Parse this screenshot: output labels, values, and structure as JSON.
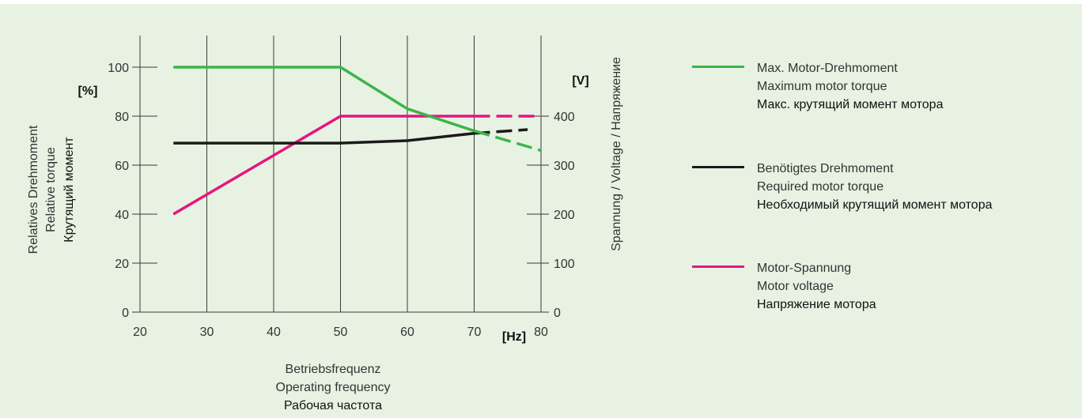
{
  "colors": {
    "background": "#e7f2e2",
    "max_torque": "#3cb54a",
    "required_torque": "#1a1a1a",
    "motor_voltage": "#e6157f"
  },
  "chart_data": {
    "type": "line",
    "xlabel": [
      "Betriebsfrequenz",
      "Operating frequency",
      "Рабочая частота"
    ],
    "x_unit": "[Hz]",
    "ylabel_left": [
      "Relatives Drehmoment",
      "Relative torque",
      "Крутящий момент"
    ],
    "y_unit_left": "[%]",
    "ylabel_right": "Spannung / Voltage / Напряжение",
    "y_unit_right": "[V]",
    "xlim": [
      20,
      80
    ],
    "ylim_left": [
      0,
      100
    ],
    "ylim_right": [
      0,
      500
    ],
    "x_ticks": [
      20,
      30,
      40,
      50,
      60,
      70,
      80
    ],
    "y_ticks_left": [
      0,
      20,
      40,
      60,
      80,
      100
    ],
    "y_ticks_right": [
      0,
      100,
      200,
      300,
      400
    ],
    "grid": "vertical lines at x ticks",
    "series": [
      {
        "name": [
          "Max. Motor-Drehmoment",
          "Maximum motor torque",
          "Макс. крутящий момент мотора"
        ],
        "color_key": "max_torque",
        "axis": "left",
        "x": [
          25,
          50,
          60,
          70
        ],
        "y": [
          100,
          100,
          83,
          74
        ],
        "dashed_x": [
          70,
          80
        ],
        "dashed_y": [
          74,
          66
        ]
      },
      {
        "name": [
          "Benötigtes Drehmoment",
          "Required motor torque",
          "Необходимый крутящий момент мотора"
        ],
        "color_key": "required_torque",
        "axis": "left",
        "x": [
          25,
          50,
          60,
          70
        ],
        "y": [
          69,
          69,
          70,
          73
        ],
        "dashed_x": [
          70,
          78
        ],
        "dashed_y": [
          73,
          74.5
        ]
      },
      {
        "name": [
          "Motor-Spannung",
          "Motor voltage",
          "Напряжение мотора"
        ],
        "color_key": "motor_voltage",
        "axis": "right",
        "x": [
          25,
          50,
          70
        ],
        "y": [
          200,
          400,
          400
        ],
        "dashed_x": [
          70,
          80
        ],
        "dashed_y": [
          400,
          400
        ]
      }
    ]
  }
}
